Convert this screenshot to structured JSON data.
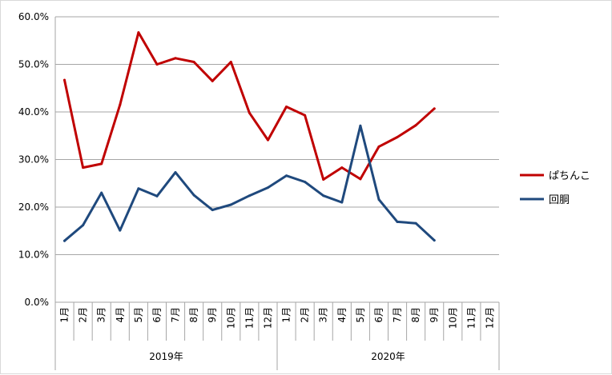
{
  "chart_data": {
    "type": "line",
    "y_ticks": [
      "0.0%",
      "10.0%",
      "20.0%",
      "30.0%",
      "40.0%",
      "50.0%",
      "60.0%"
    ],
    "ylim": [
      0,
      60
    ],
    "grid": true,
    "legend_position": "right",
    "x_month_labels": [
      "1月",
      "2月",
      "3月",
      "4月",
      "5月",
      "6月",
      "7月",
      "8月",
      "9月",
      "10月",
      "11月",
      "12月",
      "1月",
      "2月",
      "3月",
      "4月",
      "5月",
      "6月",
      "7月",
      "8月",
      "9月",
      "10月",
      "11月",
      "12月"
    ],
    "x_year_groups": [
      {
        "label": "2019年",
        "start": 0,
        "end": 11
      },
      {
        "label": "2020年",
        "start": 12,
        "end": 23
      }
    ],
    "series": [
      {
        "name": "ぱちんこ",
        "color": "#C00000",
        "values": [
          46.7,
          28.3,
          29.1,
          41.5,
          56.7,
          50.0,
          51.3,
          50.5,
          46.5,
          50.5,
          39.8,
          34.1,
          41.1,
          39.3,
          25.8,
          28.3,
          25.9,
          32.7,
          34.7,
          37.2,
          40.7,
          null,
          null,
          null
        ]
      },
      {
        "name": "回胴",
        "color": "#1F497D",
        "values": [
          12.9,
          16.2,
          23.0,
          15.1,
          23.9,
          22.3,
          27.3,
          22.5,
          19.4,
          20.5,
          22.4,
          24.1,
          26.6,
          25.3,
          22.4,
          21.0,
          37.1,
          21.6,
          16.9,
          16.6,
          13.0,
          null,
          null,
          null
        ]
      }
    ]
  }
}
